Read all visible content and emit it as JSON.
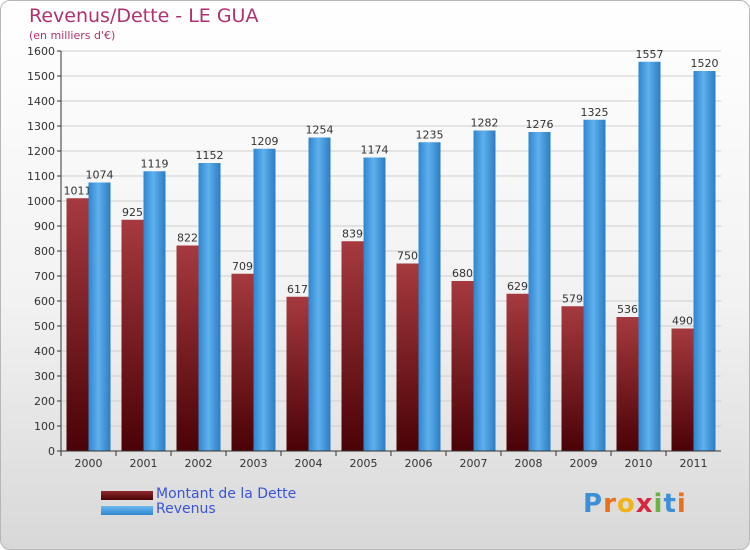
{
  "title": "Revenus/Dette - LE GUA",
  "subtitle": "(en milliers d'€)",
  "logo": [
    "P",
    "r",
    "o",
    "x",
    "i",
    "t",
    "i"
  ],
  "colors": {
    "dette": "#6b0f12",
    "revenus": "#3d95d8",
    "grid": "#cfcfcf",
    "axis": "#333333",
    "text": "#333333"
  },
  "chart_data": {
    "type": "bar",
    "categories": [
      "2000",
      "2001",
      "2002",
      "2003",
      "2004",
      "2005",
      "2006",
      "2007",
      "2008",
      "2009",
      "2010",
      "2011"
    ],
    "series": [
      {
        "name": "Montant de la Dette",
        "values": [
          1011,
          925,
          822,
          709,
          617,
          839,
          750,
          680,
          629,
          579,
          536,
          490
        ]
      },
      {
        "name": "Revenus",
        "values": [
          1074,
          1119,
          1152,
          1209,
          1254,
          1174,
          1235,
          1282,
          1276,
          1325,
          1557,
          1520
        ]
      }
    ],
    "ylim": [
      0,
      1600
    ],
    "ytick_step": 100,
    "grid": true,
    "legend_position": "bottom-left"
  }
}
